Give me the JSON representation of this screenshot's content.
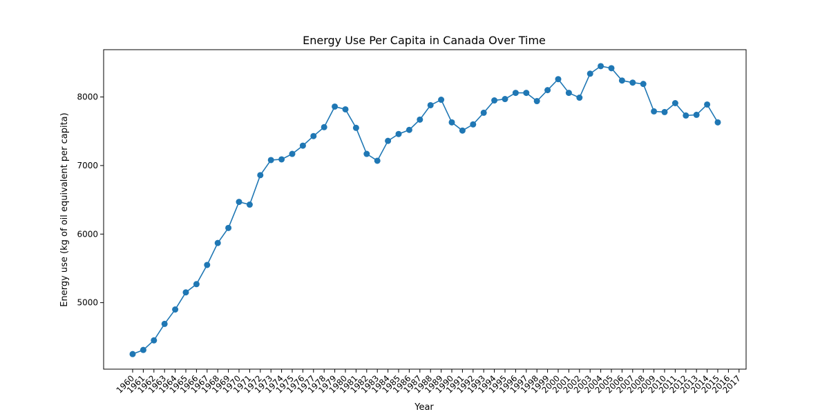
{
  "chart_data": {
    "type": "line",
    "title": "Energy Use Per Capita in Canada Over Time",
    "xlabel": "Year",
    "ylabel": "Energy use (kg of oil equivalent per capita)",
    "grid": false,
    "legend": "none",
    "colors": {
      "line": "#1f77b4",
      "axis": "#000000"
    },
    "x_categories": [
      "1960",
      "1961",
      "1962",
      "1963",
      "1964",
      "1965",
      "1966",
      "1967",
      "1968",
      "1969",
      "1970",
      "1971",
      "1972",
      "1973",
      "1974",
      "1975",
      "1976",
      "1977",
      "1978",
      "1979",
      "1980",
      "1981",
      "1982",
      "1983",
      "1984",
      "1985",
      "1986",
      "1987",
      "1988",
      "1989",
      "1990",
      "1991",
      "1992",
      "1993",
      "1994",
      "1995",
      "1996",
      "1997",
      "1998",
      "1999",
      "2000",
      "2001",
      "2002",
      "2003",
      "2004",
      "2005",
      "2006",
      "2007",
      "2008",
      "2009",
      "2010",
      "2011",
      "2012",
      "2013",
      "2014",
      "2015",
      "2016",
      "2017"
    ],
    "y_ticks": [
      5000,
      6000,
      7000,
      8000
    ],
    "ylim": [
      4030,
      8690
    ],
    "series": [
      {
        "values": [
          4250,
          4310,
          4450,
          4690,
          4900,
          5150,
          5270,
          5550,
          5870,
          6090,
          6470,
          6430,
          6860,
          7080,
          7090,
          7170,
          7290,
          7430,
          7560,
          7860,
          7820,
          7550,
          7170,
          7070,
          7360,
          7460,
          7520,
          7670,
          7880,
          7960,
          7630,
          7510,
          7600,
          7770,
          7950,
          7970,
          8060,
          8060,
          7940,
          8100,
          8260,
          8060,
          7990,
          8340,
          8450,
          8420,
          8240,
          8210,
          8190,
          7790,
          7780,
          7910,
          7730,
          7740,
          7890,
          7630,
          null,
          null
        ]
      }
    ]
  }
}
